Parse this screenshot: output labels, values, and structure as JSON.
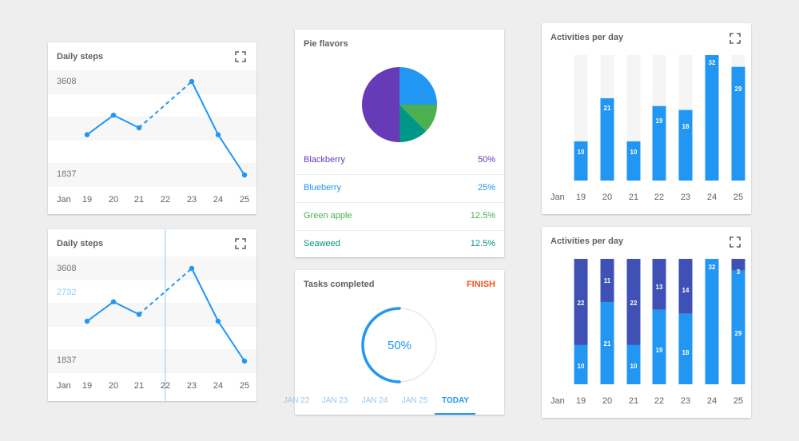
{
  "colors": {
    "accent": "#2196f3",
    "dark_bar": "#3f51b5",
    "light_bar": "#2196f3",
    "track": "#f5f5f5",
    "finish": "#f4511e",
    "blackberry": "#673ab7",
    "blueberry": "#2196f3",
    "green_apple": "#4caf50",
    "seaweed": "#009688"
  },
  "steps_card_1": {
    "title": "Daily steps",
    "expand_icon": "fullscreen-icon",
    "y_max_label": "3608",
    "y_min_label": "1837",
    "x_labels": [
      "Jan",
      "19",
      "20",
      "21",
      "22",
      "23",
      "24",
      "25"
    ]
  },
  "steps_card_2": {
    "title": "Daily steps",
    "expand_icon": "fullscreen-icon",
    "y_max_label": "3608",
    "y_hover_label": "2732",
    "y_min_label": "1837",
    "x_labels": [
      "Jan",
      "19",
      "20",
      "21",
      "22",
      "23",
      "24",
      "25"
    ]
  },
  "pie_card": {
    "title": "Pie flavors",
    "items": [
      {
        "name": "Blackberry",
        "pct": "50%",
        "color": "#673ab7"
      },
      {
        "name": "Blueberry",
        "pct": "25%",
        "color": "#2196f3"
      },
      {
        "name": "Green apple",
        "pct": "12.5%",
        "color": "#4caf50"
      },
      {
        "name": "Seaweed",
        "pct": "12.5%",
        "color": "#009688"
      }
    ]
  },
  "tasks_card": {
    "title": "Tasks completed",
    "finish_label": "FINISH",
    "progress_label": "50%",
    "progress": 0.5,
    "tabs": [
      "JAN 22",
      "JAN 23",
      "JAN 24",
      "JAN 25",
      "TODAY"
    ],
    "active_tab": 4
  },
  "activities_card_1": {
    "title": "Activities per day",
    "expand_icon": "fullscreen-icon",
    "x_labels": [
      "Jan",
      "19",
      "20",
      "21",
      "22",
      "23",
      "24",
      "25"
    ],
    "value_labels": [
      "10",
      "21",
      "10",
      "19",
      "18",
      "32",
      "29"
    ]
  },
  "activities_card_2": {
    "title": "Activities per day",
    "expand_icon": "fullscreen-icon",
    "x_labels": [
      "Jan",
      "19",
      "20",
      "21",
      "22",
      "23",
      "24",
      "25"
    ],
    "bottom_labels": [
      "10",
      "21",
      "10",
      "19",
      "18",
      "32",
      "29"
    ],
    "top_labels": [
      "22",
      "11",
      "22",
      "13",
      "14",
      "",
      "3"
    ]
  },
  "chart_data": [
    {
      "type": "line",
      "title": "Daily steps",
      "x": [
        "19",
        "20",
        "21",
        "22",
        "23",
        "24",
        "25"
      ],
      "series": [
        {
          "values": [
            2600,
            2970,
            2730,
            null,
            3608,
            2600,
            1837
          ]
        }
      ],
      "ylim": [
        1837,
        3608
      ],
      "dashed_segment": [
        "21",
        "23"
      ]
    },
    {
      "type": "line",
      "title": "Daily steps",
      "x": [
        "19",
        "20",
        "21",
        "22",
        "23",
        "24",
        "25"
      ],
      "series": [
        {
          "values": [
            2600,
            2970,
            2730,
            null,
            3608,
            2600,
            1837
          ]
        }
      ],
      "ylim": [
        1837,
        3608
      ],
      "cursor": {
        "x": "22",
        "y": 2732
      }
    },
    {
      "type": "pie",
      "title": "Pie flavors",
      "categories": [
        "Blackberry",
        "Blueberry",
        "Green apple",
        "Seaweed"
      ],
      "values": [
        50,
        25,
        12.5,
        12.5
      ]
    },
    {
      "type": "bar",
      "title": "Activities per day",
      "categories": [
        "19",
        "20",
        "21",
        "22",
        "23",
        "24",
        "25"
      ],
      "values": [
        10,
        21,
        10,
        19,
        18,
        32,
        29
      ],
      "ylim": [
        0,
        32
      ]
    },
    {
      "type": "bar",
      "title": "Activities per day",
      "stacked": true,
      "categories": [
        "19",
        "20",
        "21",
        "22",
        "23",
        "24",
        "25"
      ],
      "series": [
        {
          "values": [
            10,
            21,
            10,
            19,
            18,
            32,
            29
          ]
        },
        {
          "values": [
            22,
            11,
            22,
            13,
            14,
            0,
            3
          ]
        }
      ],
      "ylim": [
        0,
        32
      ]
    }
  ]
}
